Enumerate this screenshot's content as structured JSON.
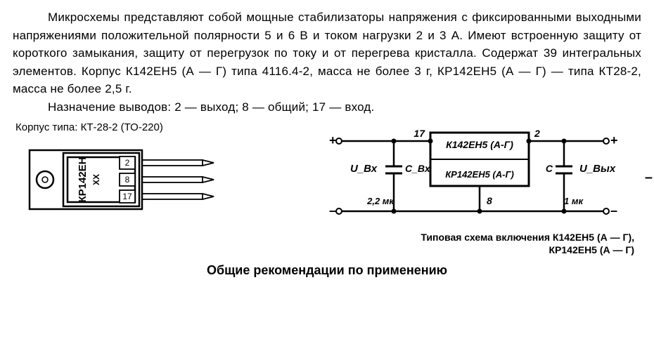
{
  "text": {
    "para1": "Микросхемы представляют собой мощные стабилизаторы напряжения с фиксированными выходными напряжениями положительной полярности 5 и 6 В и током нагрузки 2 и 3 А. Имеют встроенную защиту от короткого замыкания, защиту от перегрузок по току и от перегрева кристалла. Содержат 39 интегральных элементов. Корпус К142ЕН5 (А — Г) типа 4116.4-2, масса не более 3 г, КР142ЕН5 (А — Г) — типа КТ28-2, масса не более 2,5 г.",
    "para2": "Назначение выводов: 2 — выход; 8 — общий; 17 — вход.",
    "package_caption": "Корпус типа: КТ-28-2 (ТО-220)",
    "schematic_caption_1": "Типовая схема включения К142ЕН5 (А — Г),",
    "schematic_caption_2": "КР142ЕН5 (А — Г)",
    "section_title": "Общие рекомендации по применению"
  },
  "package": {
    "chip_label_top": "КР142ЕН",
    "chip_mark": "XX",
    "pins": [
      "2",
      "8",
      "17"
    ],
    "stroke": "#000000",
    "fill": "#ffffff",
    "fontsize": 12
  },
  "schematic": {
    "chip_line1": "К142ЕН5 (А-Г)",
    "chip_line2": "КР142ЕН5 (А-Г)",
    "pin_in": "17",
    "pin_out": "2",
    "pin_gnd": "8",
    "vin_label": "U_Вх",
    "vout_label": "U_Вых",
    "cin_label": "C_Вх",
    "cout_label": "C",
    "cin_value": "2,2 мк",
    "cout_value": "1 мк",
    "stroke": "#000000",
    "fontsize": 12,
    "fontsize_small": 11
  }
}
